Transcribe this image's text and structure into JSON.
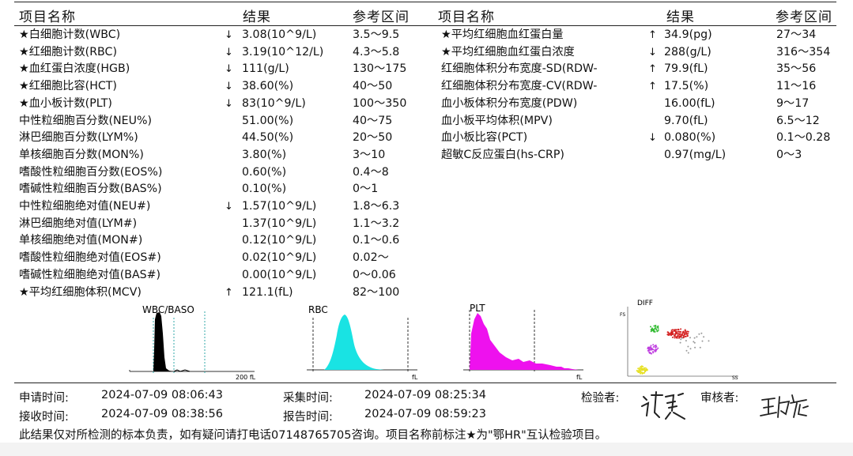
{
  "headers": {
    "left": {
      "name": "项目名称",
      "result": "结果",
      "range": "参考区间"
    },
    "right": {
      "name": "项目名称",
      "result": "结果",
      "range": "参考区间"
    }
  },
  "left_items": [
    {
      "name": "★白细胞计数(WBC)",
      "flag": "↓",
      "result": "3.08(10^9/L)",
      "range": "3.5～9.5"
    },
    {
      "name": "★红细胞计数(RBC)",
      "flag": "↓",
      "result": "3.19(10^12/L)",
      "range": "4.3～5.8"
    },
    {
      "name": "★血红蛋白浓度(HGB)",
      "flag": "↓",
      "result": "111(g/L)",
      "range": "130～175"
    },
    {
      "name": "★红细胞比容(HCT)",
      "flag": "↓",
      "result": "38.60(%)",
      "range": "40～50"
    },
    {
      "name": "★血小板计数(PLT)",
      "flag": "↓",
      "result": "83(10^9/L)",
      "range": "100～350"
    },
    {
      "name": "中性粒细胞百分数(NEU%)",
      "flag": "",
      "result": "51.00(%)",
      "range": "40～75"
    },
    {
      "name": "淋巴细胞百分数(LYM%)",
      "flag": "",
      "result": "44.50(%)",
      "range": "20～50"
    },
    {
      "name": "单核细胞百分数(MON%)",
      "flag": "",
      "result": "3.80(%)",
      "range": "3～10"
    },
    {
      "name": "嗜酸性粒细胞百分数(EOS%)",
      "flag": "",
      "result": "0.60(%)",
      "range": "0.4～8"
    },
    {
      "name": "嗜碱性粒细胞百分数(BAS%)",
      "flag": "",
      "result": "0.10(%)",
      "range": "0～1"
    },
    {
      "name": "中性粒细胞绝对值(NEU#)",
      "flag": "↓",
      "result": "1.57(10^9/L)",
      "range": "1.8～6.3"
    },
    {
      "name": "淋巴细胞绝对值(LYM#)",
      "flag": "",
      "result": "1.37(10^9/L)",
      "range": "1.1～3.2"
    },
    {
      "name": "单核细胞绝对值(MON#)",
      "flag": "",
      "result": "0.12(10^9/L)",
      "range": "0.1～0.6"
    },
    {
      "name": "嗜酸性粒细胞绝对值(EOS#)",
      "flag": "",
      "result": "0.02(10^9/L)",
      "range": "0.02～"
    },
    {
      "name": "嗜碱性粒细胞绝对值(BAS#)",
      "flag": "",
      "result": "0.00(10^9/L)",
      "range": "0～0.06"
    },
    {
      "name": "★平均红细胞体积(MCV)",
      "flag": "↑",
      "result": "121.1(fL)",
      "range": "82～100"
    }
  ],
  "right_items": [
    {
      "name": "★平均红细胞血红蛋白量",
      "flag": "↑",
      "result": "34.9(pg)",
      "range": "27～34"
    },
    {
      "name": "★平均红细胞血红蛋白浓度",
      "flag": "↓",
      "result": "288(g/L)",
      "range": "316～354"
    },
    {
      "name": "红细胞体积分布宽度-SD(RDW-",
      "flag": "↑",
      "result": "79.9(fL)",
      "range": "35～56"
    },
    {
      "name": "红细胞体积分布宽度-CV(RDW-",
      "flag": "↑",
      "result": "17.5(%)",
      "range": "11～16"
    },
    {
      "name": "血小板体积分布宽度(PDW)",
      "flag": "",
      "result": "16.00(fL)",
      "range": "9～17"
    },
    {
      "name": "血小板平均体积(MPV)",
      "flag": "",
      "result": "9.70(fL)",
      "range": "6.5～12"
    },
    {
      "name": "血小板比容(PCT)",
      "flag": "↓",
      "result": "0.080(%)",
      "range": "0.1～0.28"
    },
    {
      "name": "超敏C反应蛋白(hs-CRP)",
      "flag": "",
      "result": "0.97(mg/L)",
      "range": "0～3"
    }
  ],
  "plots": {
    "wbc": {
      "title": "WBC/BASO",
      "axis_end": "200 fL",
      "color": "#000000"
    },
    "rbc": {
      "title": "RBC",
      "axis_end": "fL",
      "color": "#19e3e3"
    },
    "plt": {
      "title": "PLT",
      "axis_end": "fL",
      "color": "#ee11ee"
    },
    "diff": {
      "title": "DIFF",
      "y_label": "FS",
      "x_label": "SS"
    }
  },
  "footer": {
    "apply_label": "申请时间:",
    "apply_time": "2024-07-09 08:06:43",
    "collect_label": "采集时间:",
    "collect_time": "2024-07-09 08:25:34",
    "inspector_label": "检验者:",
    "inspector_sig": "许瑞昊",
    "reviewer_label": "审核者:",
    "reviewer_sig": "王婷",
    "receive_label": "接收时间:",
    "receive_time": "2024-07-09 08:38:56",
    "report_label": "报告时间:",
    "report_time": "2024-07-09 08:59:23",
    "note": "此结果仅对所检测的标本负责，如有疑问请打电话07148765705咨询。项目名称前标注★为\"鄂HR\"互认检验项目。"
  }
}
